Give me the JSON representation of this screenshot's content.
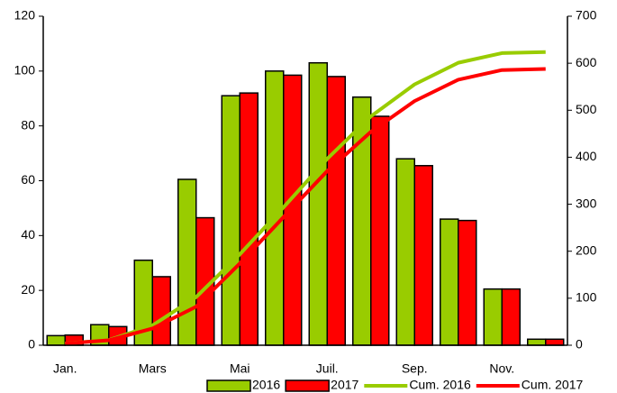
{
  "chart_data": {
    "type": "bar_line",
    "categories": [
      "Jan.",
      null,
      "Mars",
      null,
      "Mai",
      null,
      "Juil.",
      null,
      "Sep.",
      null,
      "Nov.",
      null
    ],
    "series": [
      {
        "name": "2016",
        "type": "bar",
        "color": "#99cc00",
        "values": [
          3.5,
          7.5,
          31,
          60.5,
          91,
          100,
          103,
          90.5,
          68,
          46,
          20.5,
          2.2
        ]
      },
      {
        "name": "2017",
        "type": "bar",
        "color": "#ff0000",
        "values": [
          3.7,
          6.8,
          25,
          46.5,
          92,
          98.5,
          98,
          83.5,
          65.5,
          45.5,
          20.5,
          2.2
        ]
      },
      {
        "name": "Cum. 2016",
        "type": "line",
        "axis": "y2",
        "color": "#99cc00",
        "values": [
          3.5,
          11,
          42,
          102.5,
          193.5,
          293.5,
          396.5,
          487,
          555,
          601,
          621.5,
          623.7
        ]
      },
      {
        "name": "Cum. 2017",
        "type": "line",
        "axis": "y2",
        "color": "#ff0000",
        "values": [
          3.7,
          10.5,
          35.5,
          82,
          174,
          272.5,
          370.5,
          454,
          519.5,
          565,
          585.5,
          587.7
        ]
      }
    ],
    "ylim": [
      0,
      120
    ],
    "yticks": [
      0,
      20,
      40,
      60,
      80,
      100,
      120
    ],
    "y2lim": [
      0,
      700
    ],
    "y2ticks": [
      0,
      100,
      200,
      300,
      400,
      500,
      600,
      700
    ],
    "legend": "bottom"
  }
}
